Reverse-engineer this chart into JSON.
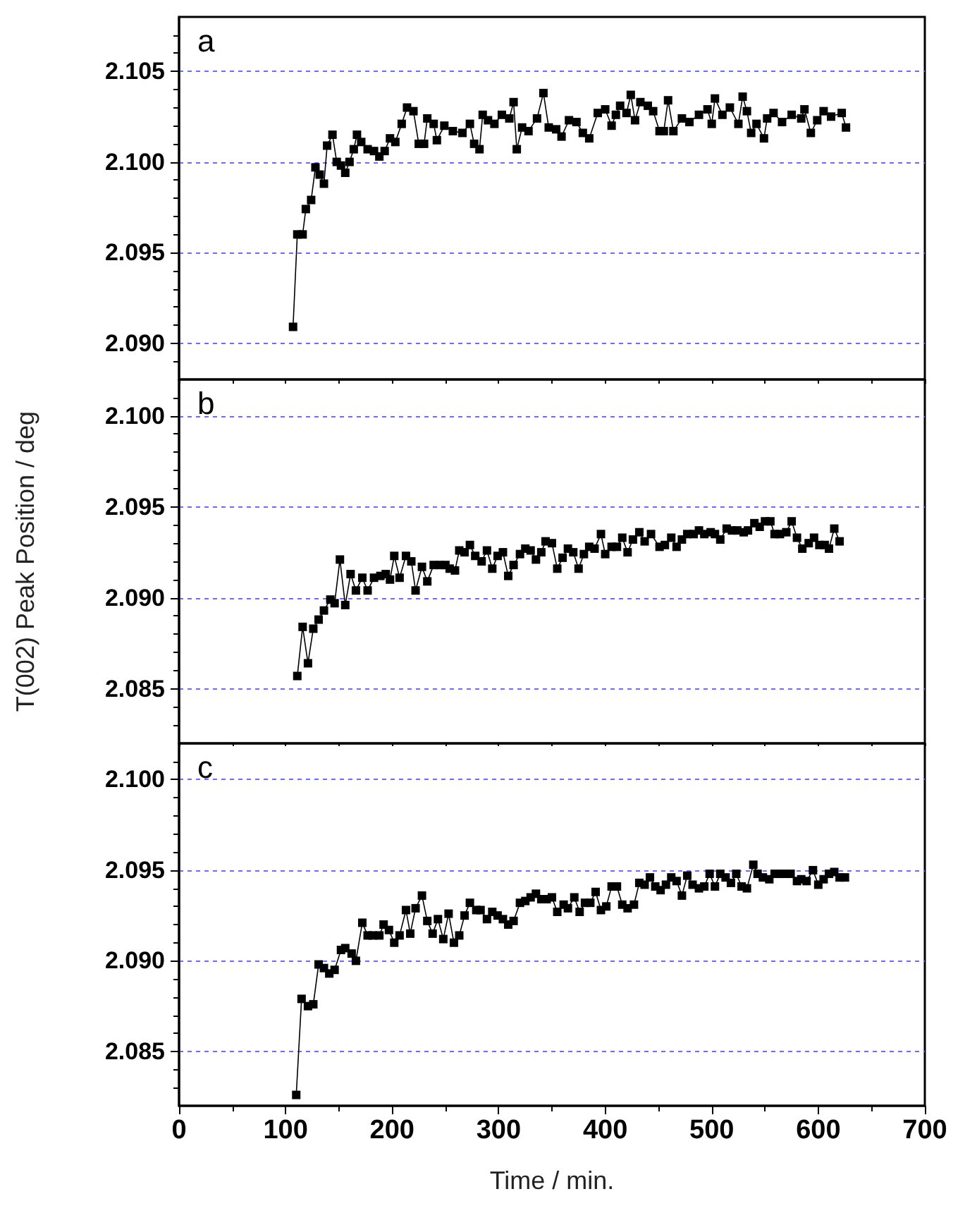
{
  "chart_data": [
    {
      "type": "line",
      "annotations": [
        "a"
      ],
      "xlim": [
        0,
        700
      ],
      "xticks": [
        0,
        100,
        200,
        300,
        400,
        500,
        600,
        700
      ],
      "ylim": [
        2.088,
        2.108
      ],
      "yticks": [
        {
          "value": 2.09,
          "label": "2.090"
        },
        {
          "value": 2.095,
          "label": "2.095"
        },
        {
          "value": 2.1,
          "label": "2.100"
        },
        {
          "value": 2.105,
          "label": "2.105"
        }
      ],
      "grid": "y",
      "tick_labels": "y",
      "marker": "square",
      "line_style": "solid",
      "series": [
        {
          "color": "#000000",
          "x": [
            107,
            111,
            116,
            119,
            124,
            128,
            132,
            136,
            139,
            144,
            148,
            152,
            156,
            160,
            164,
            167,
            171,
            177,
            183,
            188,
            193,
            198,
            203,
            209,
            214,
            220,
            225,
            230,
            233,
            239,
            242,
            249,
            257,
            266,
            273,
            277,
            282,
            285,
            290,
            296,
            303,
            310,
            314,
            317,
            322,
            328,
            336,
            342,
            347,
            354,
            359,
            366,
            373,
            379,
            385,
            393,
            400,
            406,
            410,
            414,
            420,
            424,
            428,
            433,
            440,
            445,
            451,
            455,
            459,
            464,
            472,
            479,
            488,
            496,
            500,
            503,
            510,
            517,
            525,
            529,
            533,
            537,
            542,
            549,
            552,
            558,
            566,
            575,
            584,
            587,
            593,
            599,
            605,
            612,
            622,
            626
          ],
          "values": [
            2.0909,
            2.096,
            2.096,
            2.0974,
            2.0979,
            2.0997,
            2.0993,
            2.0988,
            2.1009,
            2.1015,
            2.1,
            2.0998,
            2.0994,
            2.1,
            2.1007,
            2.1015,
            2.1011,
            2.1007,
            2.1006,
            2.1003,
            2.1006,
            2.1013,
            2.1011,
            2.1021,
            2.103,
            2.1028,
            2.101,
            2.101,
            2.1024,
            2.1021,
            2.1012,
            2.102,
            2.1017,
            2.1016,
            2.1021,
            2.101,
            2.1007,
            2.1026,
            2.1023,
            2.1021,
            2.1026,
            2.1024,
            2.1033,
            2.1007,
            2.1019,
            2.1017,
            2.1024,
            2.1038,
            2.1019,
            2.1018,
            2.1014,
            2.1023,
            2.1022,
            2.1016,
            2.1013,
            2.1027,
            2.1029,
            2.102,
            2.1026,
            2.1031,
            2.1027,
            2.1037,
            2.1023,
            2.1033,
            2.1031,
            2.1028,
            2.1017,
            2.1017,
            2.1034,
            2.1017,
            2.1024,
            2.1022,
            2.1026,
            2.1029,
            2.1021,
            2.1035,
            2.1026,
            2.103,
            2.1021,
            2.1036,
            2.1028,
            2.1016,
            2.1021,
            2.1013,
            2.1024,
            2.1027,
            2.1022,
            2.1026,
            2.1024,
            2.1029,
            2.1016,
            2.1023,
            2.1028,
            2.1025,
            2.1027,
            2.1019
          ]
        }
      ]
    },
    {
      "type": "line",
      "annotations": [
        "b"
      ],
      "ylabel": "T(002) Peak Position / deg",
      "xlim": [
        0,
        700
      ],
      "xticks": [
        0,
        100,
        200,
        300,
        400,
        500,
        600,
        700
      ],
      "ylim": [
        2.082,
        2.102
      ],
      "yticks": [
        {
          "value": 2.085,
          "label": "2.085"
        },
        {
          "value": 2.09,
          "label": "2.090"
        },
        {
          "value": 2.095,
          "label": "2.095"
        },
        {
          "value": 2.1,
          "label": "2.100"
        }
      ],
      "grid": "y",
      "tick_labels": "y",
      "marker": "square",
      "line_style": "solid",
      "series": [
        {
          "color": "#000000",
          "x": [
            111,
            116,
            121,
            126,
            131,
            136,
            142,
            146,
            151,
            156,
            161,
            166,
            172,
            177,
            183,
            189,
            194,
            198,
            202,
            207,
            213,
            218,
            222,
            228,
            233,
            239,
            245,
            250,
            254,
            259,
            263,
            268,
            273,
            278,
            284,
            289,
            294,
            299,
            304,
            309,
            314,
            320,
            325,
            330,
            335,
            340,
            344,
            350,
            355,
            360,
            365,
            370,
            375,
            380,
            385,
            390,
            396,
            400,
            406,
            411,
            416,
            421,
            426,
            432,
            437,
            443,
            451,
            456,
            462,
            467,
            472,
            477,
            483,
            488,
            493,
            499,
            503,
            508,
            514,
            519,
            524,
            530,
            534,
            540,
            545,
            550,
            555,
            559,
            564,
            570,
            575,
            580,
            585,
            591,
            596,
            601,
            606,
            610,
            615,
            620
          ],
          "values": [
            2.0857,
            2.0884,
            2.0864,
            2.0883,
            2.0888,
            2.0893,
            2.0899,
            2.0897,
            2.0921,
            2.0896,
            2.0913,
            2.0904,
            2.0911,
            2.0904,
            2.0911,
            2.0912,
            2.0913,
            2.091,
            2.0923,
            2.0911,
            2.0923,
            2.092,
            2.0904,
            2.0917,
            2.0909,
            2.0918,
            2.0918,
            2.0918,
            2.0916,
            2.0915,
            2.0926,
            2.0925,
            2.0929,
            2.0923,
            2.092,
            2.0926,
            2.0916,
            2.0923,
            2.0925,
            2.0912,
            2.0918,
            2.0924,
            2.0927,
            2.0926,
            2.0921,
            2.0925,
            2.0931,
            2.093,
            2.0916,
            2.0922,
            2.0927,
            2.0925,
            2.0916,
            2.0924,
            2.0928,
            2.0927,
            2.0935,
            2.0924,
            2.0928,
            2.0928,
            2.0933,
            2.0925,
            2.0932,
            2.0936,
            2.0931,
            2.0935,
            2.0928,
            2.0929,
            2.0933,
            2.0928,
            2.0932,
            2.0935,
            2.0935,
            2.0937,
            2.0935,
            2.0936,
            2.0935,
            2.0932,
            2.0938,
            2.0937,
            2.0937,
            2.0936,
            2.0937,
            2.0941,
            2.0939,
            2.0942,
            2.0942,
            2.0935,
            2.0935,
            2.0936,
            2.0942,
            2.0933,
            2.0927,
            2.093,
            2.0933,
            2.0929,
            2.0929,
            2.0927,
            2.0938,
            2.0931
          ]
        }
      ]
    },
    {
      "type": "line",
      "annotations": [
        "c"
      ],
      "xlabel": "Time / min.",
      "xlim": [
        0,
        700
      ],
      "xticks": [
        0,
        100,
        200,
        300,
        400,
        500,
        600,
        700
      ],
      "ylim": [
        2.082,
        2.102
      ],
      "yticks": [
        {
          "value": 2.085,
          "label": "2.085"
        },
        {
          "value": 2.09,
          "label": "2.090"
        },
        {
          "value": 2.095,
          "label": "2.095"
        },
        {
          "value": 2.1,
          "label": "2.100"
        }
      ],
      "grid": "y",
      "marker": "square",
      "line_style": "solid",
      "series": [
        {
          "color": "#000000",
          "x": [
            110,
            115,
            121,
            126,
            131,
            136,
            141,
            146,
            152,
            156,
            162,
            166,
            172,
            177,
            182,
            188,
            192,
            197,
            202,
            207,
            213,
            217,
            222,
            228,
            233,
            238,
            243,
            248,
            253,
            258,
            263,
            268,
            273,
            279,
            283,
            289,
            294,
            299,
            304,
            309,
            314,
            320,
            325,
            330,
            335,
            340,
            345,
            350,
            355,
            361,
            365,
            371,
            376,
            381,
            386,
            391,
            396,
            401,
            406,
            411,
            416,
            421,
            427,
            432,
            437,
            442,
            447,
            452,
            457,
            462,
            467,
            472,
            477,
            482,
            488,
            493,
            498,
            503,
            508,
            513,
            518,
            523,
            528,
            533,
            539,
            543,
            548,
            554,
            559,
            564,
            569,
            574,
            580,
            584,
            589,
            595,
            600,
            605,
            610,
            615,
            620,
            625
          ],
          "values": [
            2.0826,
            2.0879,
            2.0875,
            2.0876,
            2.0898,
            2.0896,
            2.0893,
            2.0895,
            2.0906,
            2.0907,
            2.0904,
            2.09,
            2.0921,
            2.0914,
            2.0914,
            2.0914,
            2.092,
            2.0917,
            2.091,
            2.0914,
            2.0928,
            2.0915,
            2.0929,
            2.0936,
            2.0922,
            2.0915,
            2.0923,
            2.0912,
            2.0926,
            2.091,
            2.0914,
            2.0925,
            2.0932,
            2.0928,
            2.0928,
            2.0923,
            2.0927,
            2.0925,
            2.0923,
            2.092,
            2.0922,
            2.0932,
            2.0933,
            2.0935,
            2.0937,
            2.0934,
            2.0934,
            2.0935,
            2.0927,
            2.0931,
            2.0929,
            2.0935,
            2.0927,
            2.0932,
            2.0932,
            2.0938,
            2.0928,
            2.093,
            2.0941,
            2.0941,
            2.0931,
            2.0929,
            2.0931,
            2.0943,
            2.0942,
            2.0946,
            2.0941,
            2.0939,
            2.0942,
            2.0946,
            2.0944,
            2.0936,
            2.0947,
            2.0942,
            2.094,
            2.0941,
            2.0948,
            2.0941,
            2.0948,
            2.0946,
            2.0943,
            2.0948,
            2.0941,
            2.094,
            2.0953,
            2.0948,
            2.0946,
            2.0945,
            2.0948,
            2.0948,
            2.0948,
            2.0948,
            2.0944,
            2.0945,
            2.0944,
            2.095,
            2.0942,
            2.0945,
            2.0948,
            2.0949,
            2.0946,
            2.0946
          ]
        }
      ]
    }
  ]
}
